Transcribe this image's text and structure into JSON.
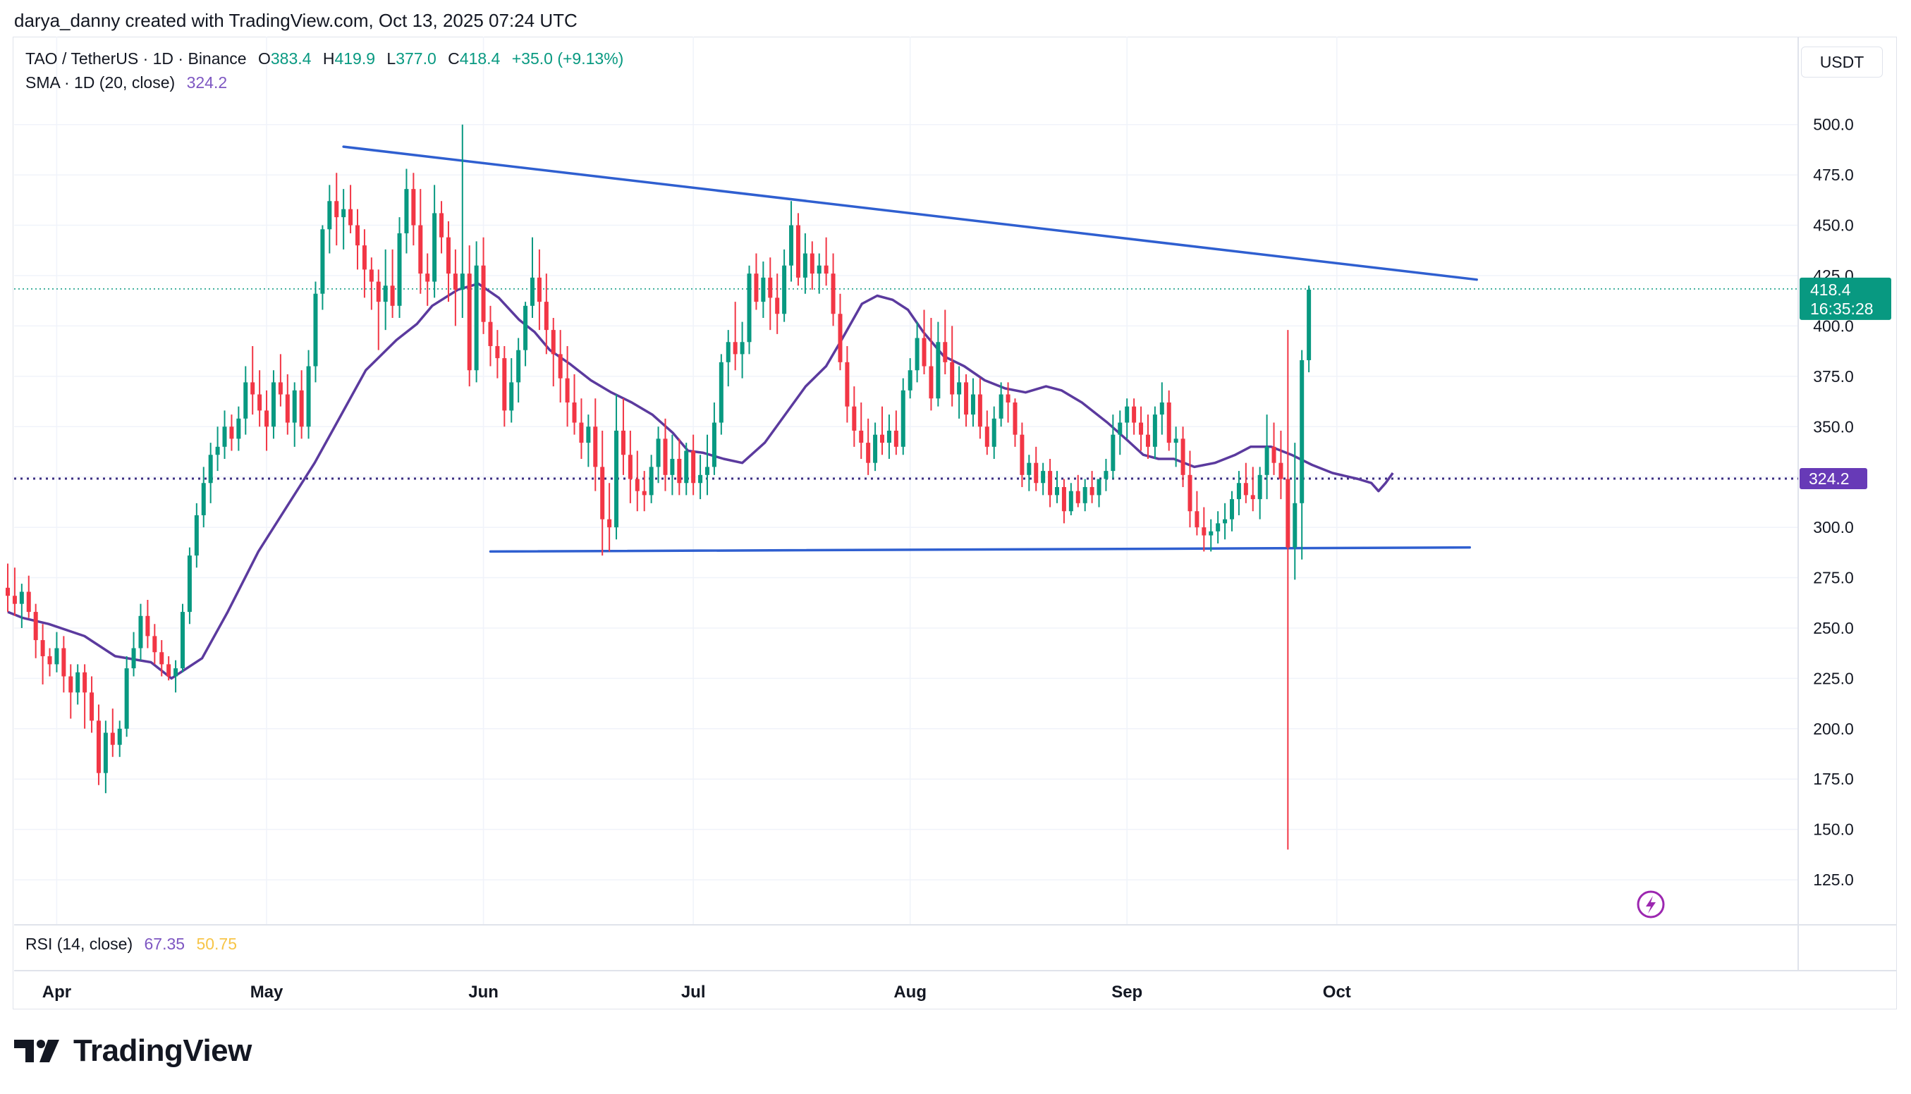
{
  "byline": "darya_danny created with TradingView.com, Oct 13, 2025 07:24 UTC",
  "legend": {
    "symbol": "TAO / TetherUS · 1D · Binance",
    "o_label": "O",
    "o_value": "383.4",
    "h_label": "H",
    "h_value": "419.9",
    "l_label": "L",
    "l_value": "377.0",
    "c_label": "C",
    "c_value": "418.4",
    "change": "+35.0 (+9.13%)",
    "sma_label": "SMA · 1D (20, close)",
    "sma_value": "324.2",
    "rsi_label": "RSI (14, close)",
    "rsi_value": "67.35",
    "rsi_ma_value": "50.75"
  },
  "currency": "USDT",
  "price_label": {
    "price": "418.4",
    "countdown": "16:35:28"
  },
  "sma_label": "324.2",
  "logo_text": "TradingView",
  "colors": {
    "up": "#089981",
    "down": "#f23645",
    "sma": "#5b3a9e",
    "trendline": "#2f5fd0",
    "sma_tag": "#673ab7",
    "price_tag": "#089981"
  },
  "chart_data": {
    "type": "candlestick",
    "x_ticks": [
      "Apr",
      "May",
      "Jun",
      "Jul",
      "Aug",
      "Sep",
      "Oct"
    ],
    "y_ticks": [
      "500.0",
      "475.0",
      "450.0",
      "425.0",
      "400.0",
      "375.0",
      "350.0",
      "325.0",
      "300.0",
      "275.0",
      "250.0",
      "225.0",
      "200.0",
      "175.0",
      "150.0",
      "125.0"
    ],
    "ylim": [
      115,
      540
    ],
    "date_range": [
      "2025-03-25",
      "2025-10-13"
    ],
    "start_date": "2025-03-25",
    "grid": true,
    "candles": [
      [
        270,
        282,
        258,
        266
      ],
      [
        266,
        280,
        256,
        262
      ],
      [
        262,
        272,
        250,
        268
      ],
      [
        268,
        276,
        255,
        258
      ],
      [
        258,
        262,
        235,
        244
      ],
      [
        244,
        252,
        222,
        236
      ],
      [
        236,
        240,
        226,
        232
      ],
      [
        232,
        248,
        228,
        240
      ],
      [
        240,
        246,
        218,
        226
      ],
      [
        226,
        232,
        205,
        218
      ],
      [
        218,
        232,
        212,
        228
      ],
      [
        228,
        232,
        200,
        218
      ],
      [
        218,
        226,
        198,
        204
      ],
      [
        204,
        212,
        172,
        178
      ],
      [
        178,
        204,
        168,
        198
      ],
      [
        198,
        210,
        186,
        192
      ],
      [
        192,
        204,
        186,
        200
      ],
      [
        200,
        236,
        196,
        230
      ],
      [
        230,
        248,
        226,
        240
      ],
      [
        240,
        262,
        234,
        256
      ],
      [
        256,
        264,
        240,
        246
      ],
      [
        246,
        252,
        232,
        238
      ],
      [
        238,
        244,
        226,
        232
      ],
      [
        232,
        236,
        224,
        226
      ],
      [
        226,
        234,
        218,
        230
      ],
      [
        230,
        262,
        228,
        258
      ],
      [
        258,
        290,
        252,
        286
      ],
      [
        286,
        312,
        280,
        306
      ],
      [
        306,
        330,
        300,
        322
      ],
      [
        322,
        342,
        312,
        336
      ],
      [
        336,
        350,
        328,
        340
      ],
      [
        340,
        358,
        334,
        350
      ],
      [
        350,
        356,
        338,
        344
      ],
      [
        344,
        360,
        338,
        354
      ],
      [
        354,
        380,
        346,
        372
      ],
      [
        372,
        390,
        356,
        366
      ],
      [
        366,
        378,
        350,
        358
      ],
      [
        358,
        368,
        338,
        350
      ],
      [
        350,
        378,
        344,
        372
      ],
      [
        372,
        386,
        360,
        366
      ],
      [
        366,
        376,
        346,
        352
      ],
      [
        352,
        372,
        340,
        368
      ],
      [
        368,
        378,
        344,
        350
      ],
      [
        350,
        388,
        344,
        380
      ],
      [
        380,
        422,
        372,
        416
      ],
      [
        416,
        450,
        408,
        448
      ],
      [
        448,
        470,
        436,
        462
      ],
      [
        462,
        476,
        440,
        454
      ],
      [
        454,
        468,
        438,
        458
      ],
      [
        458,
        470,
        446,
        450
      ],
      [
        450,
        458,
        428,
        440
      ],
      [
        440,
        448,
        414,
        428
      ],
      [
        428,
        434,
        408,
        422
      ],
      [
        422,
        428,
        388,
        412
      ],
      [
        412,
        438,
        398,
        420
      ],
      [
        420,
        438,
        404,
        410
      ],
      [
        410,
        454,
        404,
        446
      ],
      [
        446,
        478,
        436,
        468
      ],
      [
        468,
        476,
        440,
        450
      ],
      [
        450,
        468,
        416,
        426
      ],
      [
        426,
        436,
        410,
        422
      ],
      [
        422,
        470,
        414,
        456
      ],
      [
        456,
        462,
        436,
        444
      ],
      [
        444,
        452,
        412,
        426
      ],
      [
        426,
        438,
        400,
        418
      ],
      [
        418,
        500,
        404,
        426
      ],
      [
        426,
        440,
        370,
        378
      ],
      [
        378,
        442,
        372,
        430
      ],
      [
        430,
        444,
        396,
        402
      ],
      [
        402,
        410,
        380,
        390
      ],
      [
        390,
        398,
        374,
        384
      ],
      [
        384,
        390,
        350,
        358
      ],
      [
        358,
        384,
        352,
        372
      ],
      [
        372,
        394,
        362,
        388
      ],
      [
        388,
        412,
        380,
        410
      ],
      [
        410,
        444,
        404,
        424
      ],
      [
        424,
        438,
        398,
        412
      ],
      [
        412,
        426,
        386,
        398
      ],
      [
        398,
        404,
        370,
        386
      ],
      [
        386,
        398,
        362,
        374
      ],
      [
        374,
        390,
        350,
        362
      ],
      [
        362,
        376,
        346,
        352
      ],
      [
        352,
        364,
        334,
        342
      ],
      [
        342,
        356,
        330,
        350
      ],
      [
        350,
        364,
        318,
        330
      ],
      [
        330,
        348,
        286,
        304
      ],
      [
        304,
        322,
        288,
        300
      ],
      [
        300,
        366,
        294,
        348
      ],
      [
        348,
        364,
        326,
        336
      ],
      [
        336,
        348,
        312,
        324
      ],
      [
        324,
        338,
        308,
        318
      ],
      [
        318,
        328,
        308,
        316
      ],
      [
        316,
        336,
        312,
        330
      ],
      [
        330,
        350,
        322,
        344
      ],
      [
        344,
        354,
        318,
        326
      ],
      [
        326,
        346,
        316,
        334
      ],
      [
        334,
        344,
        316,
        322
      ],
      [
        322,
        342,
        316,
        338
      ],
      [
        338,
        346,
        316,
        322
      ],
      [
        322,
        336,
        314,
        326
      ],
      [
        326,
        346,
        316,
        330
      ],
      [
        330,
        362,
        326,
        352
      ],
      [
        352,
        386,
        346,
        382
      ],
      [
        382,
        398,
        370,
        392
      ],
      [
        392,
        412,
        378,
        386
      ],
      [
        386,
        402,
        374,
        392
      ],
      [
        392,
        430,
        386,
        426
      ],
      [
        426,
        436,
        408,
        412
      ],
      [
        412,
        432,
        404,
        424
      ],
      [
        424,
        434,
        398,
        414
      ],
      [
        414,
        426,
        396,
        406
      ],
      [
        406,
        438,
        402,
        430
      ],
      [
        430,
        462,
        422,
        450
      ],
      [
        450,
        456,
        420,
        424
      ],
      [
        424,
        446,
        416,
        436
      ],
      [
        436,
        442,
        418,
        426
      ],
      [
        426,
        436,
        416,
        430
      ],
      [
        430,
        444,
        420,
        426
      ],
      [
        426,
        436,
        400,
        406
      ],
      [
        406,
        416,
        378,
        382
      ],
      [
        382,
        390,
        352,
        360
      ],
      [
        360,
        370,
        340,
        348
      ],
      [
        348,
        362,
        334,
        342
      ],
      [
        342,
        354,
        326,
        332
      ],
      [
        332,
        352,
        328,
        346
      ],
      [
        346,
        360,
        336,
        342
      ],
      [
        342,
        356,
        334,
        348
      ],
      [
        348,
        358,
        336,
        340
      ],
      [
        340,
        374,
        336,
        368
      ],
      [
        368,
        384,
        364,
        378
      ],
      [
        378,
        402,
        372,
        394
      ],
      [
        394,
        408,
        376,
        380
      ],
      [
        380,
        404,
        358,
        364
      ],
      [
        364,
        402,
        360,
        392
      ],
      [
        392,
        408,
        376,
        382
      ],
      [
        382,
        400,
        360,
        366
      ],
      [
        366,
        380,
        354,
        372
      ],
      [
        372,
        376,
        350,
        356
      ],
      [
        356,
        374,
        350,
        366
      ],
      [
        366,
        374,
        344,
        350
      ],
      [
        350,
        358,
        336,
        340
      ],
      [
        340,
        360,
        334,
        354
      ],
      [
        354,
        372,
        350,
        366
      ],
      [
        366,
        372,
        352,
        362
      ],
      [
        362,
        364,
        340,
        346
      ],
      [
        346,
        352,
        320,
        326
      ],
      [
        326,
        336,
        318,
        332
      ],
      [
        332,
        340,
        318,
        322
      ],
      [
        322,
        332,
        316,
        328
      ],
      [
        328,
        334,
        310,
        316
      ],
      [
        316,
        328,
        312,
        320
      ],
      [
        320,
        324,
        302,
        308
      ],
      [
        308,
        322,
        306,
        318
      ],
      [
        318,
        326,
        310,
        312
      ],
      [
        312,
        324,
        308,
        320
      ],
      [
        320,
        328,
        312,
        316
      ],
      [
        316,
        324,
        310,
        324
      ],
      [
        324,
        334,
        318,
        328
      ],
      [
        328,
        356,
        324,
        346
      ],
      [
        346,
        358,
        336,
        352
      ],
      [
        352,
        364,
        344,
        360
      ],
      [
        360,
        364,
        346,
        352
      ],
      [
        352,
        360,
        338,
        346
      ],
      [
        346,
        356,
        334,
        340
      ],
      [
        340,
        360,
        334,
        356
      ],
      [
        356,
        372,
        346,
        362
      ],
      [
        362,
        368,
        338,
        342
      ],
      [
        342,
        350,
        330,
        344
      ],
      [
        344,
        350,
        320,
        326
      ],
      [
        326,
        338,
        300,
        308
      ],
      [
        308,
        318,
        296,
        300
      ],
      [
        300,
        310,
        288,
        296
      ],
      [
        296,
        304,
        288,
        298
      ],
      [
        298,
        308,
        292,
        302
      ],
      [
        302,
        312,
        294,
        304
      ],
      [
        304,
        318,
        298,
        314
      ],
      [
        314,
        328,
        306,
        322
      ],
      [
        322,
        332,
        312,
        316
      ],
      [
        316,
        330,
        308,
        314
      ],
      [
        314,
        330,
        304,
        326
      ],
      [
        326,
        356,
        314,
        340
      ],
      [
        340,
        352,
        326,
        332
      ],
      [
        332,
        348,
        314,
        324
      ],
      [
        324,
        398,
        140,
        290
      ],
      [
        290,
        342,
        274,
        312
      ],
      [
        312,
        388,
        284,
        383
      ],
      [
        383,
        420,
        377,
        418
      ]
    ],
    "sma20": [
      [
        0,
        258
      ],
      [
        15,
        255
      ],
      [
        40,
        252
      ],
      [
        75,
        246
      ],
      [
        105,
        236
      ],
      [
        140,
        233
      ],
      [
        160,
        225
      ],
      [
        190,
        235
      ],
      [
        215,
        258
      ],
      [
        245,
        288
      ],
      [
        275,
        312
      ],
      [
        300,
        332
      ],
      [
        325,
        355
      ],
      [
        350,
        378
      ],
      [
        380,
        393
      ],
      [
        400,
        401
      ],
      [
        415,
        410
      ],
      [
        440,
        418
      ],
      [
        460,
        421
      ],
      [
        480,
        414
      ],
      [
        500,
        403
      ],
      [
        515,
        397
      ],
      [
        530,
        388
      ],
      [
        550,
        381
      ],
      [
        570,
        373
      ],
      [
        590,
        367
      ],
      [
        610,
        362
      ],
      [
        630,
        356
      ],
      [
        650,
        347
      ],
      [
        665,
        338
      ],
      [
        680,
        337
      ],
      [
        700,
        334
      ],
      [
        718,
        332
      ],
      [
        740,
        342
      ],
      [
        760,
        356
      ],
      [
        780,
        370
      ],
      [
        800,
        380
      ],
      [
        815,
        393
      ],
      [
        835,
        411
      ],
      [
        850,
        415
      ],
      [
        865,
        413
      ],
      [
        880,
        408
      ],
      [
        895,
        397
      ],
      [
        915,
        385
      ],
      [
        935,
        380
      ],
      [
        955,
        373
      ],
      [
        975,
        369
      ],
      [
        995,
        367
      ],
      [
        1015,
        370
      ],
      [
        1030,
        368
      ],
      [
        1050,
        362
      ],
      [
        1075,
        352
      ],
      [
        1095,
        343
      ],
      [
        1110,
        336
      ],
      [
        1125,
        334
      ],
      [
        1140,
        334
      ],
      [
        1160,
        330
      ],
      [
        1180,
        332
      ],
      [
        1200,
        336
      ],
      [
        1215,
        340
      ],
      [
        1235,
        340
      ],
      [
        1255,
        336
      ],
      [
        1275,
        331
      ],
      [
        1295,
        327
      ],
      [
        1320,
        324
      ],
      [
        1333,
        322
      ],
      [
        1340,
        318
      ],
      [
        1347,
        322
      ],
      [
        1354,
        327
      ]
    ],
    "trendlines": [
      {
        "name": "resistance",
        "from": [
          "2025-05-12",
          489
        ],
        "to": [
          "2025-10-21",
          423
        ]
      },
      {
        "name": "support",
        "from": [
          "2025-06-02",
          288
        ],
        "to": [
          "2025-10-20",
          290
        ]
      }
    ],
    "horizontal_lines": [
      324.2,
      418.4
    ],
    "y_axis": "right"
  }
}
